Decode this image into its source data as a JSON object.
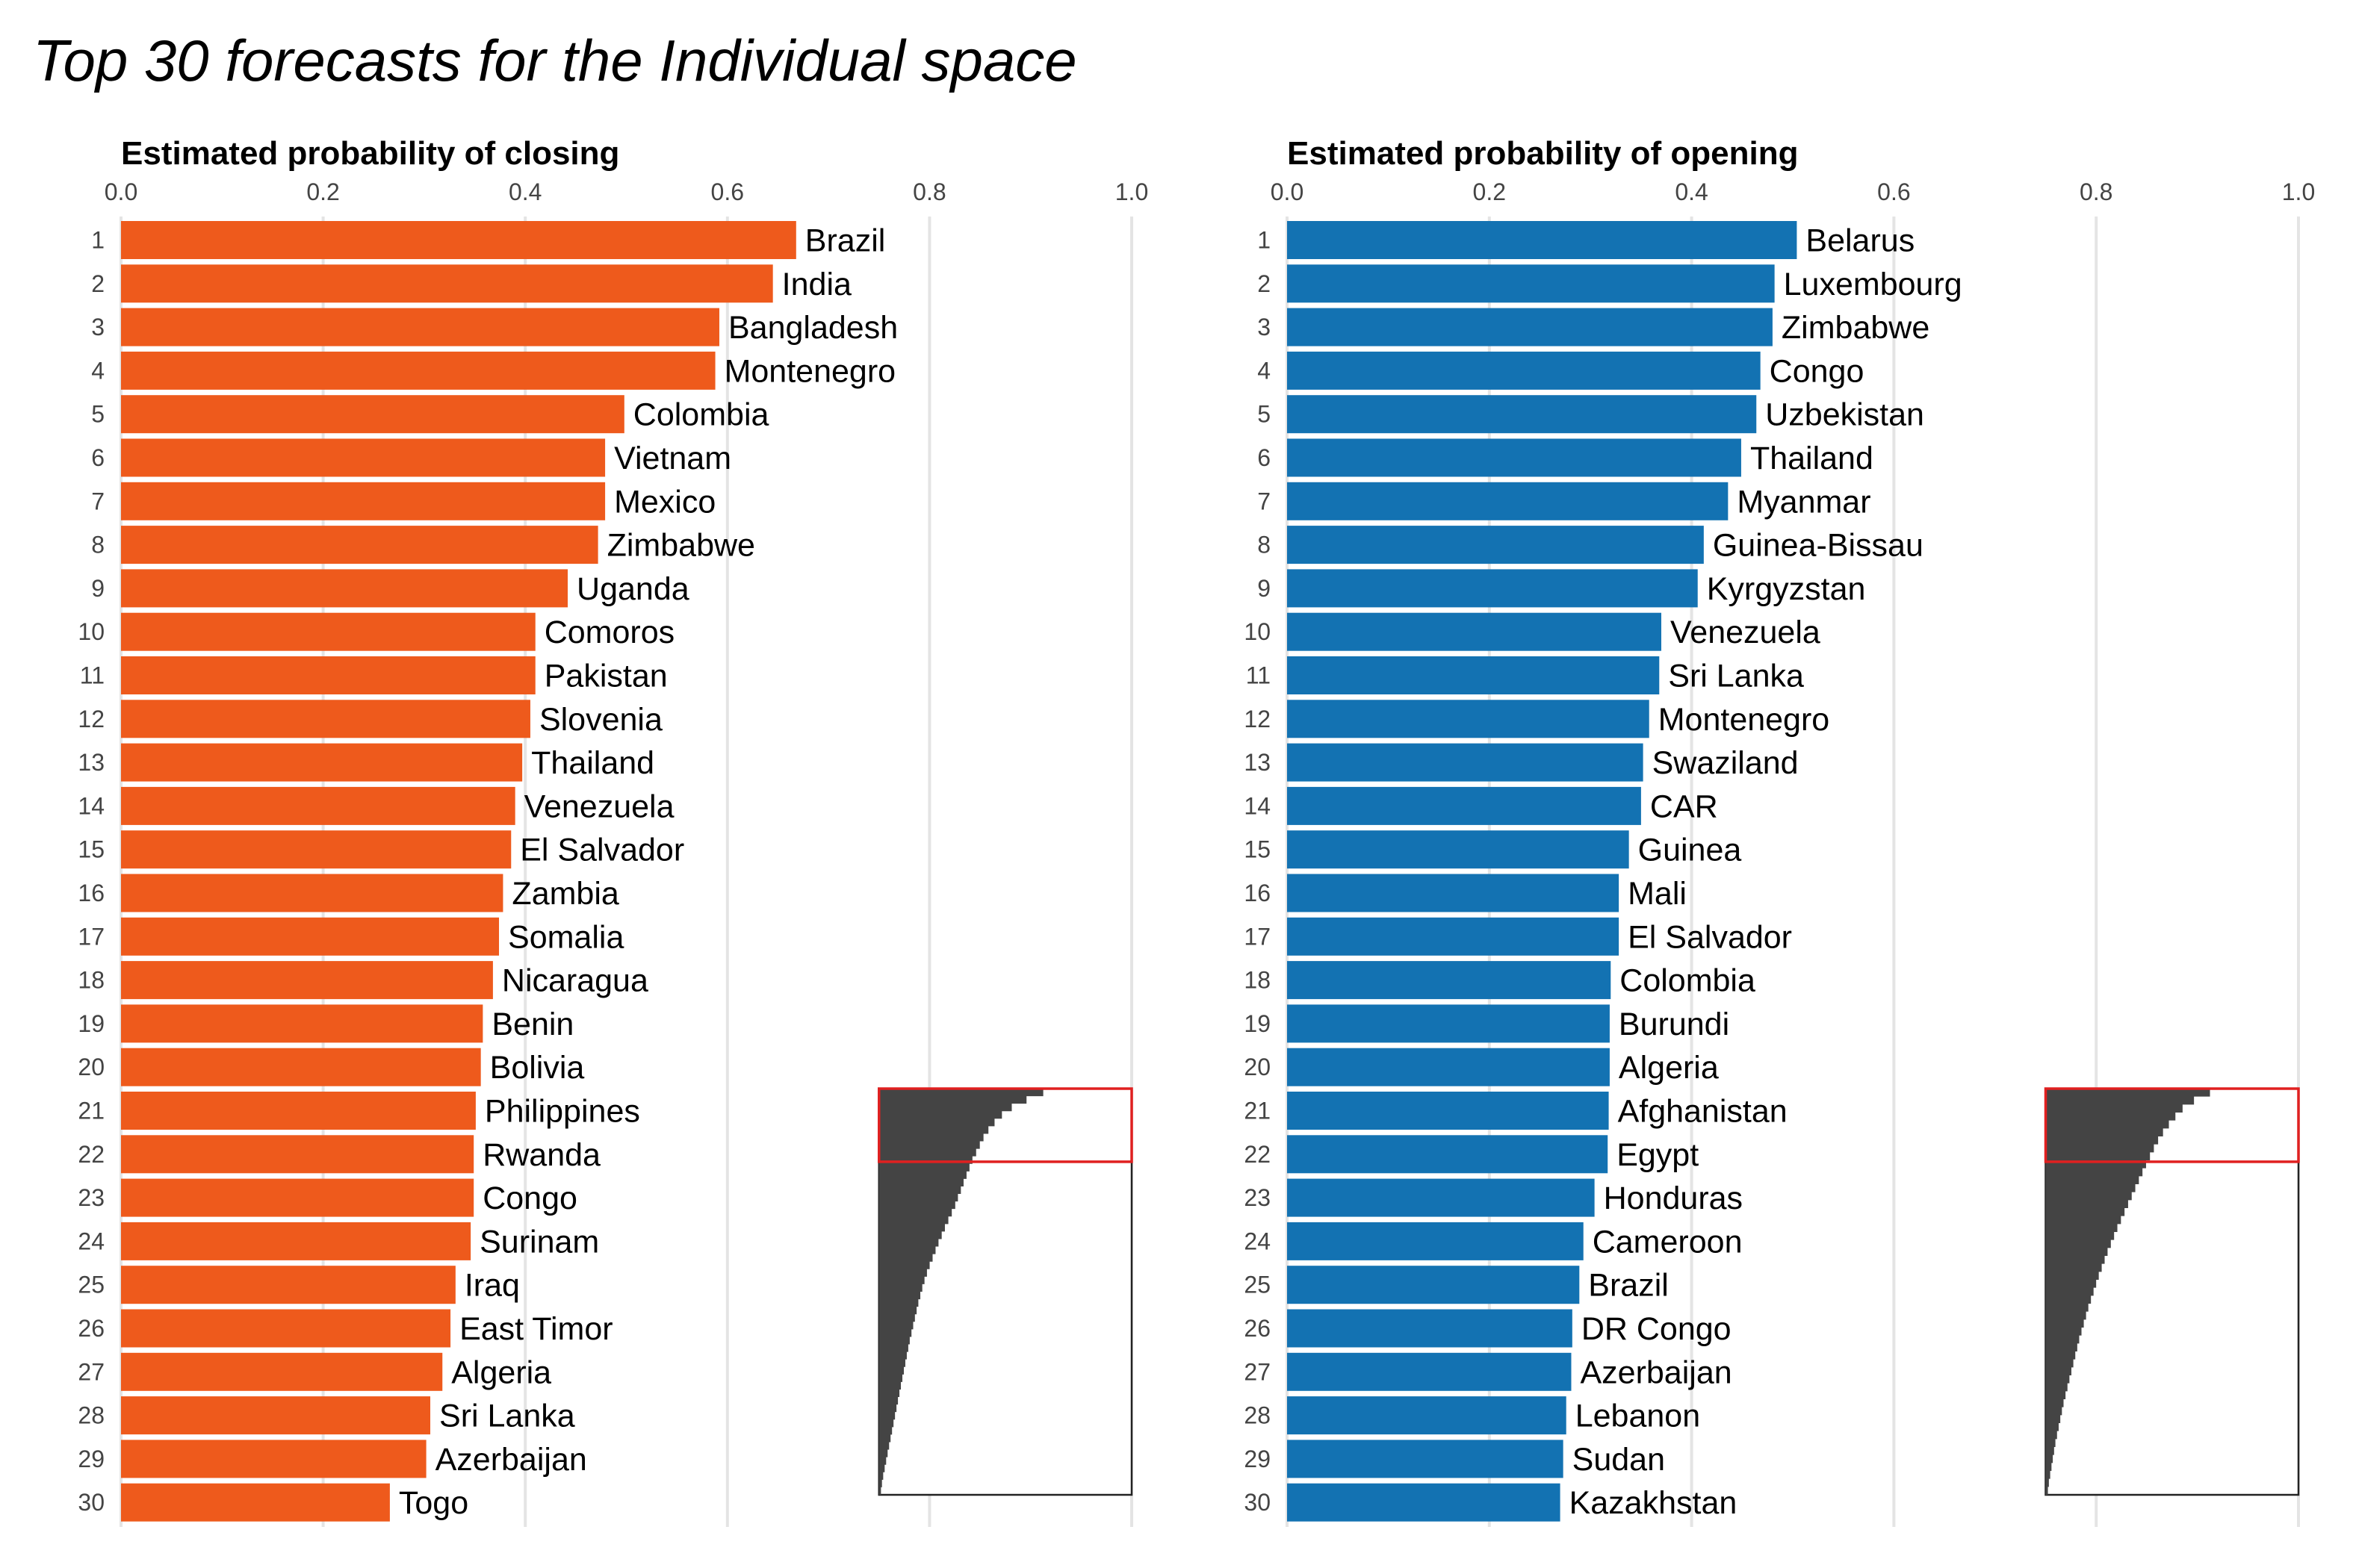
{
  "title": "Top 30 forecasts for the Individual space",
  "chart_data": [
    {
      "type": "bar",
      "orientation": "horizontal",
      "title": "Estimated probability of closing",
      "color": "#EE5A1C",
      "xlim": [
        0,
        1
      ],
      "x_ticks": [
        "0.0",
        "0.2",
        "0.4",
        "0.6",
        "0.8",
        "1.0"
      ],
      "grid": "vertical",
      "ranks": [
        "1",
        "2",
        "3",
        "4",
        "5",
        "6",
        "7",
        "8",
        "9",
        "10",
        "11",
        "12",
        "13",
        "14",
        "15",
        "16",
        "17",
        "18",
        "19",
        "20",
        "21",
        "22",
        "23",
        "24",
        "25",
        "26",
        "27",
        "28",
        "29",
        "30"
      ],
      "categories": [
        "Brazil",
        "India",
        "Bangladesh",
        "Montenegro",
        "Colombia",
        "Vietnam",
        "Mexico",
        "Zimbabwe",
        "Uganda",
        "Comoros",
        "Pakistan",
        "Slovenia",
        "Thailand",
        "Venezuela",
        "El Salvador",
        "Zambia",
        "Somalia",
        "Nicaragua",
        "Benin",
        "Bolivia",
        "Philippines",
        "Rwanda",
        "Congo",
        "Surinam",
        "Iraq",
        "East Timor",
        "Algeria",
        "Sri Lanka",
        "Azerbaijan",
        "Togo"
      ],
      "values": [
        0.668,
        0.645,
        0.592,
        0.588,
        0.498,
        0.479,
        0.479,
        0.472,
        0.442,
        0.41,
        0.41,
        0.405,
        0.397,
        0.39,
        0.386,
        0.378,
        0.374,
        0.368,
        0.358,
        0.356,
        0.351,
        0.349,
        0.349,
        0.346,
        0.331,
        0.326,
        0.318,
        0.306,
        0.302,
        0.266
      ],
      "inset": {
        "type": "area",
        "color": "#444444",
        "highlight_color": "#E02020",
        "highlight_count": 30,
        "distribution": [
          0.668,
          0.6,
          0.54,
          0.5,
          0.47,
          0.445,
          0.425,
          0.41,
          0.395,
          0.38,
          0.368,
          0.356,
          0.344,
          0.333,
          0.321,
          0.31,
          0.296,
          0.282,
          0.268,
          0.255,
          0.242,
          0.23,
          0.218,
          0.206,
          0.195,
          0.185,
          0.176,
          0.168,
          0.16,
          0.153,
          0.146,
          0.139,
          0.132,
          0.125,
          0.119,
          0.113,
          0.107,
          0.101,
          0.095,
          0.089,
          0.083,
          0.077,
          0.071,
          0.065,
          0.059,
          0.053,
          0.047,
          0.041,
          0.035,
          0.029,
          0.023,
          0.017,
          0.012,
          0.008,
          0.005
        ]
      }
    },
    {
      "type": "bar",
      "orientation": "horizontal",
      "title": "Estimated probability of opening",
      "color": "#1372B2",
      "xlim": [
        0,
        1
      ],
      "x_ticks": [
        "0.0",
        "0.2",
        "0.4",
        "0.6",
        "0.8",
        "1.0"
      ],
      "grid": "vertical",
      "ranks": [
        "1",
        "2",
        "3",
        "4",
        "5",
        "6",
        "7",
        "8",
        "9",
        "10",
        "11",
        "12",
        "13",
        "14",
        "15",
        "16",
        "17",
        "18",
        "19",
        "20",
        "21",
        "22",
        "23",
        "24",
        "25",
        "26",
        "27",
        "28",
        "29",
        "30"
      ],
      "categories": [
        "Belarus",
        "Luxembourg",
        "Zimbabwe",
        "Congo",
        "Uzbekistan",
        "Thailand",
        "Myanmar",
        "Guinea-Bissau",
        "Kyrgyzstan",
        "Venezuela",
        "Sri Lanka",
        "Montenegro",
        "Swaziland",
        "CAR",
        "Guinea",
        "Mali",
        "El Salvador",
        "Colombia",
        "Burundi",
        "Algeria",
        "Afghanistan",
        "Egypt",
        "Honduras",
        "Cameroon",
        "Brazil",
        "DR Congo",
        "Azerbaijan",
        "Lebanon",
        "Sudan",
        "Kazakhstan"
      ],
      "values": [
        0.504,
        0.482,
        0.48,
        0.468,
        0.464,
        0.449,
        0.436,
        0.412,
        0.406,
        0.37,
        0.368,
        0.358,
        0.352,
        0.35,
        0.338,
        0.328,
        0.328,
        0.32,
        0.319,
        0.319,
        0.318,
        0.317,
        0.304,
        0.293,
        0.289,
        0.282,
        0.281,
        0.276,
        0.273,
        0.27
      ],
      "inset": {
        "type": "area",
        "color": "#444444",
        "highlight_color": "#E02020",
        "highlight_count": 30,
        "distribution": [
          0.504,
          0.455,
          0.42,
          0.398,
          0.378,
          0.36,
          0.345,
          0.332,
          0.32,
          0.308,
          0.297,
          0.286,
          0.275,
          0.264,
          0.253,
          0.242,
          0.231,
          0.22,
          0.21,
          0.2,
          0.19,
          0.181,
          0.172,
          0.163,
          0.155,
          0.147,
          0.139,
          0.131,
          0.124,
          0.117,
          0.11,
          0.103,
          0.097,
          0.091,
          0.085,
          0.079,
          0.073,
          0.067,
          0.061,
          0.055,
          0.05,
          0.045,
          0.04,
          0.035,
          0.03,
          0.026,
          0.022,
          0.018,
          0.014,
          0.01,
          0.007,
          0.004
        ]
      }
    }
  ]
}
